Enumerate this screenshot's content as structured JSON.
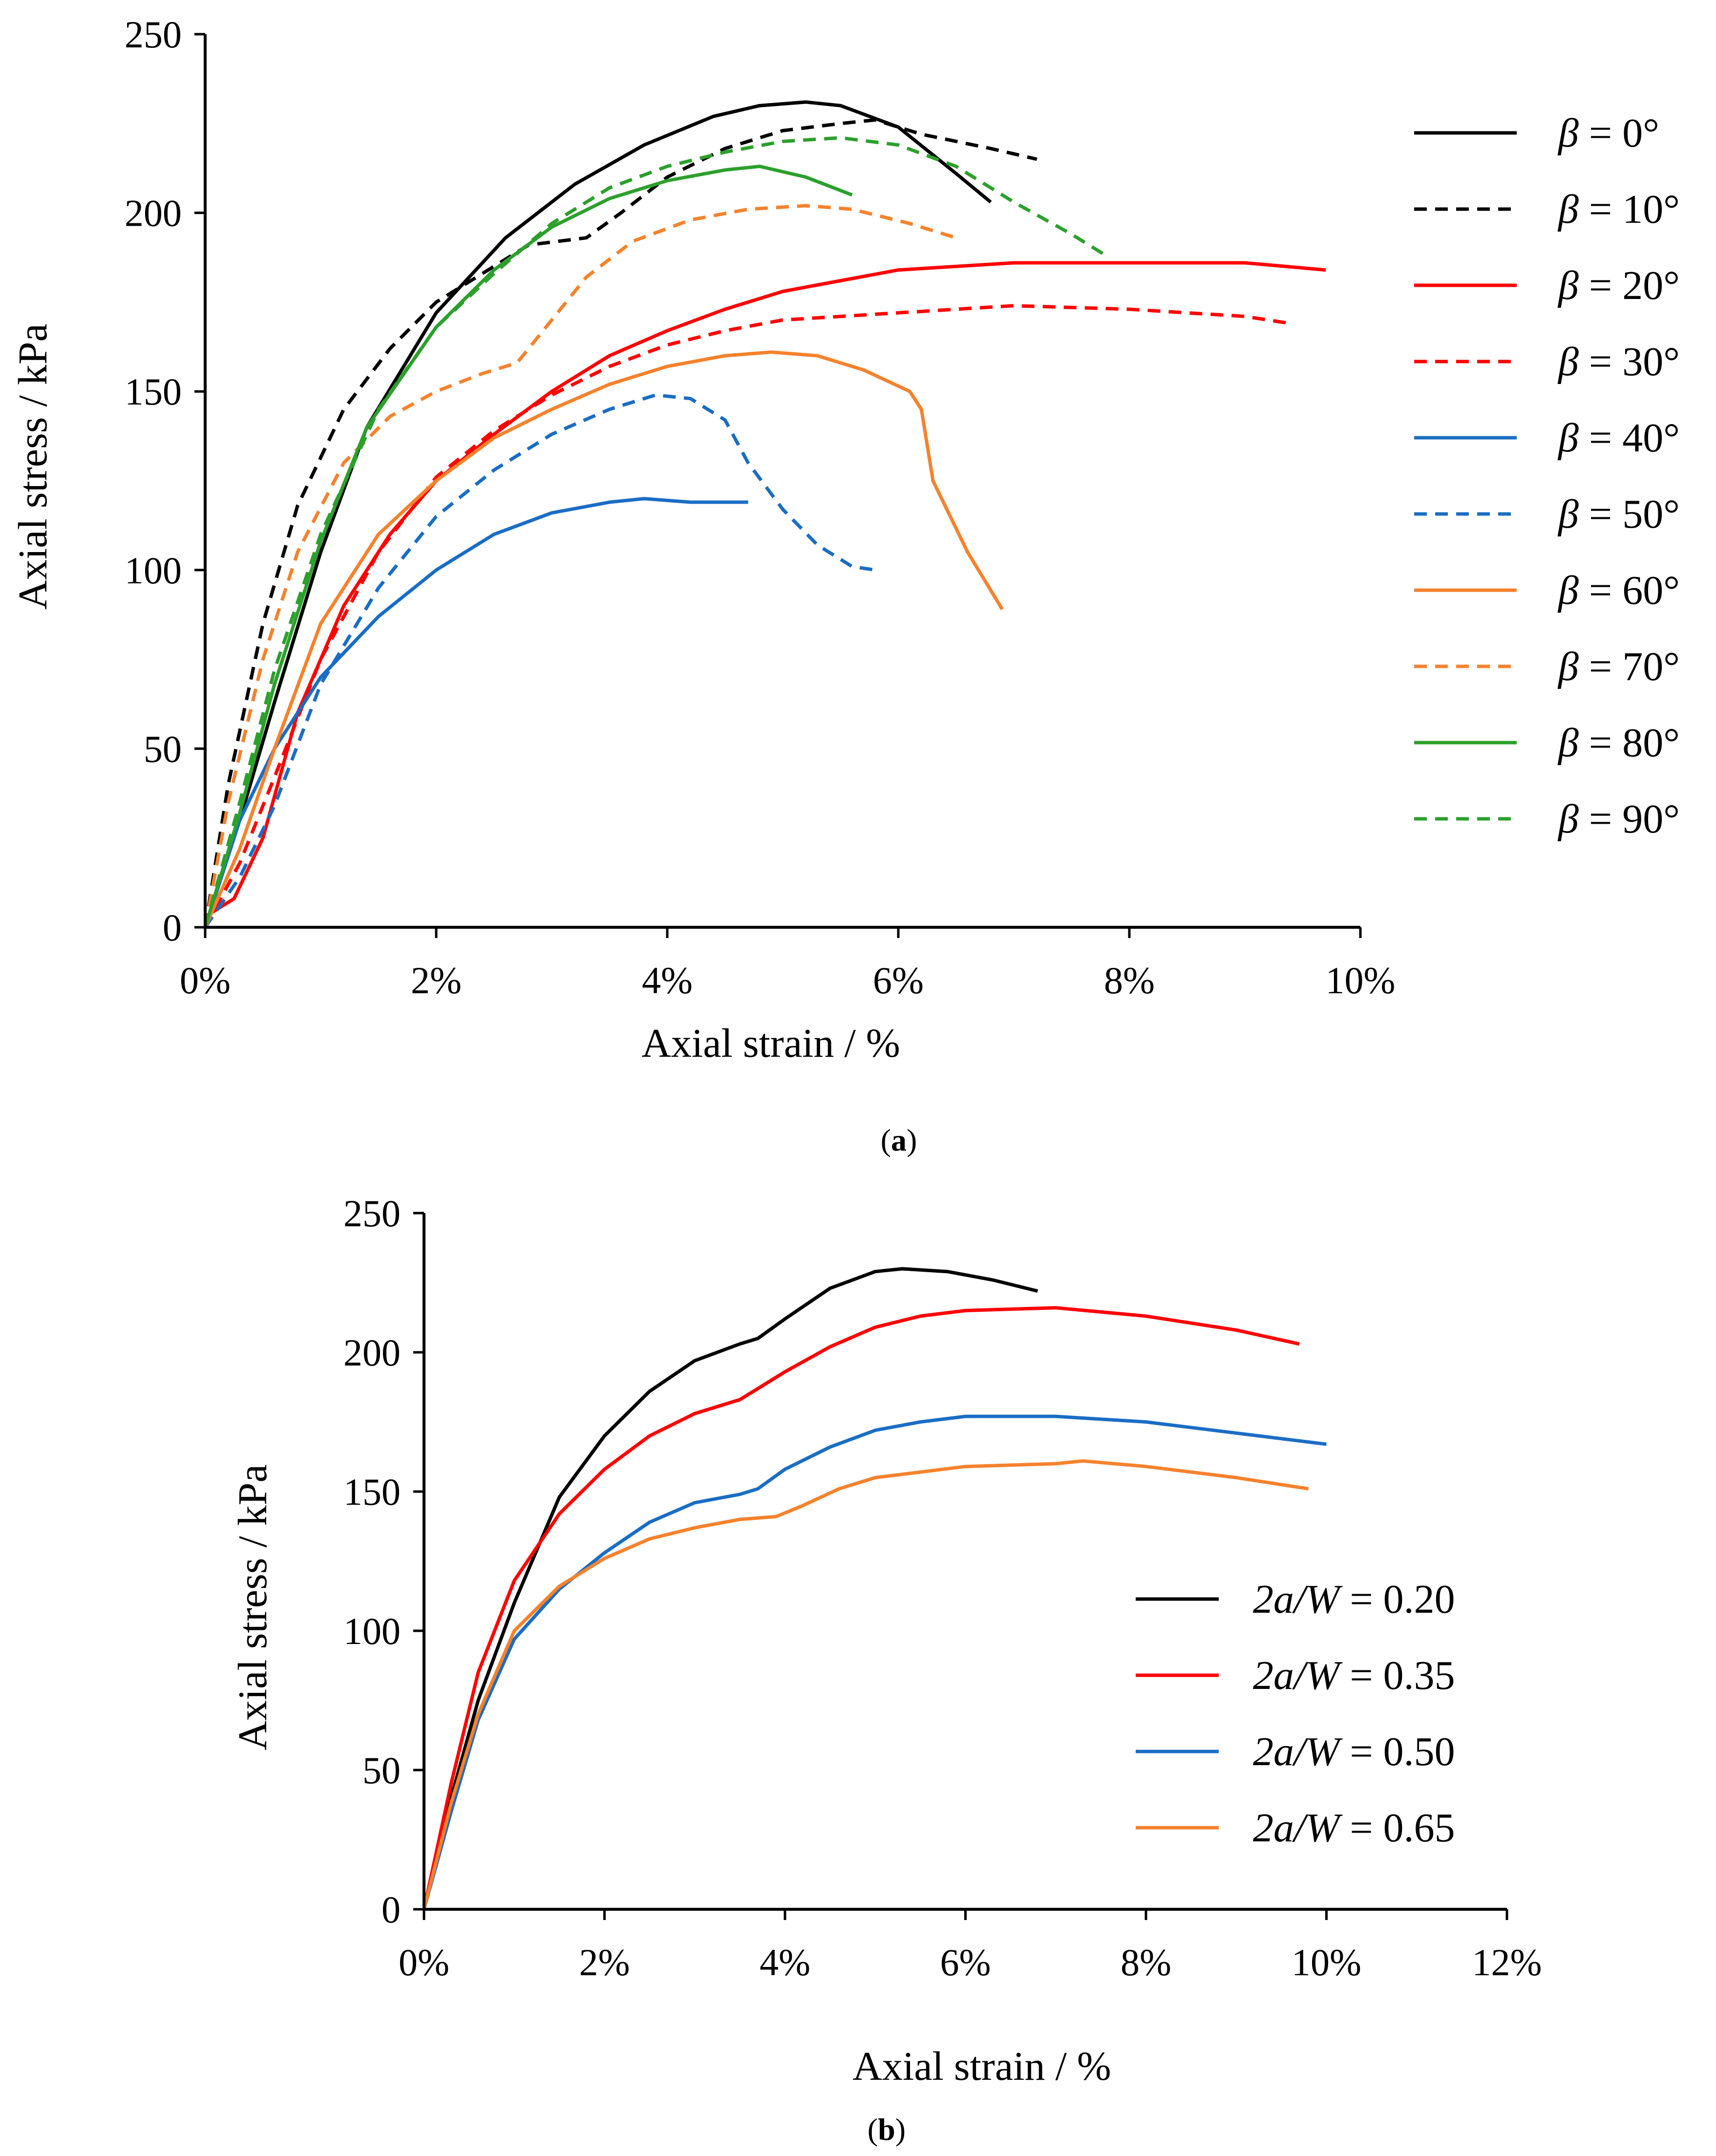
{
  "chart_data": [
    {
      "type": "line",
      "panel_label": {
        "open": "(",
        "letter": "a",
        "close": ")"
      },
      "xlabel": "Axial strain / %",
      "ylabel": "Axial stress / kPa",
      "xlim": [
        0,
        10
      ],
      "ylim": [
        0,
        250
      ],
      "x_ticks": [
        0,
        2,
        4,
        6,
        8,
        10
      ],
      "x_tick_labels": [
        "0%",
        "2%",
        "4%",
        "6%",
        "8%",
        "10%"
      ],
      "y_ticks": [
        0,
        50,
        100,
        150,
        200,
        250
      ],
      "y_tick_labels": [
        "0",
        "50",
        "100",
        "150",
        "200",
        "250"
      ],
      "grid": false,
      "legend_position": "right",
      "series": [
        {
          "name": "β = 0°",
          "legend_var": "β",
          "legend_rest": " = 0°",
          "color": "#000000",
          "dash": "solid",
          "x": [
            0,
            0.3,
            0.6,
            1.0,
            1.4,
            2.0,
            2.6,
            3.2,
            3.8,
            4.4,
            4.8,
            5.2,
            5.5,
            6.0,
            6.5,
            6.8
          ],
          "y": [
            0,
            30,
            63,
            105,
            140,
            172,
            193,
            208,
            219,
            227,
            230,
            231,
            230,
            224,
            211,
            203
          ]
        },
        {
          "name": "β = 10°",
          "legend_var": "β",
          "legend_rest": " = 10°",
          "color": "#000000",
          "dash": "dashed",
          "x": [
            0,
            0.2,
            0.5,
            0.8,
            1.2,
            1.6,
            2.0,
            2.4,
            2.8,
            3.3,
            3.6,
            4.0,
            4.5,
            5.0,
            5.5,
            5.8,
            6.2,
            6.8,
            7.2
          ],
          "y": [
            0,
            40,
            85,
            118,
            145,
            162,
            175,
            183,
            191,
            193,
            200,
            210,
            218,
            223,
            225,
            226,
            222,
            218,
            215
          ]
        },
        {
          "name": "β = 20°",
          "legend_var": "β",
          "legend_rest": " = 20°",
          "color": "#ff0000",
          "dash": "solid",
          "x": [
            0,
            0.25,
            0.5,
            0.8,
            1.2,
            1.6,
            2.0,
            2.5,
            3.0,
            3.5,
            4.0,
            4.5,
            5.0,
            5.5,
            6.0,
            7.0,
            8.0,
            9.0,
            9.7
          ],
          "y": [
            3,
            8,
            25,
            60,
            90,
            110,
            125,
            138,
            150,
            160,
            167,
            173,
            178,
            181,
            184,
            186,
            186,
            186,
            184
          ]
        },
        {
          "name": "β = 30°",
          "legend_var": "β",
          "legend_rest": " = 30°",
          "color": "#ff0000",
          "dash": "dashed",
          "x": [
            0,
            0.3,
            0.6,
            1.0,
            1.5,
            2.0,
            2.5,
            3.0,
            3.5,
            4.0,
            4.5,
            5.0,
            6.0,
            7.0,
            8.0,
            9.0,
            9.4
          ],
          "y": [
            0,
            18,
            42,
            75,
            105,
            126,
            139,
            149,
            157,
            163,
            167,
            170,
            172,
            174,
            173,
            171,
            169
          ]
        },
        {
          "name": "β = 40°",
          "legend_var": "β",
          "legend_rest": " = 40°",
          "color": "#1a6dc4",
          "dash": "solid",
          "x": [
            0,
            0.3,
            0.6,
            1.0,
            1.5,
            2.0,
            2.5,
            3.0,
            3.5,
            3.8,
            4.2,
            4.7
          ],
          "y": [
            0,
            30,
            50,
            70,
            87,
            100,
            110,
            116,
            119,
            120,
            119,
            119
          ]
        },
        {
          "name": "β = 50°",
          "legend_var": "β",
          "legend_rest": " = 50°",
          "color": "#1a6dc4",
          "dash": "dashed",
          "x": [
            0,
            0.3,
            0.6,
            1.0,
            1.5,
            2.0,
            2.5,
            3.0,
            3.5,
            3.9,
            4.2,
            4.5,
            4.7,
            5.0,
            5.3,
            5.6,
            5.8
          ],
          "y": [
            0,
            14,
            34,
            68,
            95,
            115,
            128,
            138,
            145,
            149,
            148,
            142,
            130,
            117,
            107,
            101,
            100
          ]
        },
        {
          "name": "β = 60°",
          "legend_var": "β",
          "legend_rest": " = 60°",
          "color": "#f5822d",
          "dash": "solid",
          "x": [
            0,
            0.3,
            0.6,
            1.0,
            1.5,
            2.0,
            2.5,
            3.0,
            3.5,
            4.0,
            4.5,
            4.9,
            5.3,
            5.7,
            6.1,
            6.2,
            6.3,
            6.6,
            6.9
          ],
          "y": [
            0,
            22,
            50,
            85,
            110,
            125,
            137,
            145,
            152,
            157,
            160,
            161,
            160,
            156,
            150,
            145,
            125,
            105,
            89
          ]
        },
        {
          "name": "β = 70°",
          "legend_var": "β",
          "legend_rest": " = 70°",
          "color": "#f5822d",
          "dash": "dashed",
          "x": [
            0,
            0.2,
            0.5,
            0.8,
            1.2,
            1.6,
            2.0,
            2.4,
            2.7,
            3.0,
            3.3,
            3.7,
            4.2,
            4.7,
            5.2,
            5.6,
            6.1,
            6.5
          ],
          "y": [
            0,
            35,
            75,
            105,
            130,
            143,
            150,
            155,
            158,
            170,
            182,
            192,
            198,
            201,
            202,
            201,
            197,
            193
          ]
        },
        {
          "name": "β = 80°",
          "legend_var": "β",
          "legend_rest": " = 80°",
          "color": "#2ca02c",
          "dash": "solid",
          "x": [
            0,
            0.3,
            0.6,
            1.0,
            1.4,
            2.0,
            2.5,
            3.0,
            3.5,
            4.0,
            4.5,
            4.8,
            5.2,
            5.6
          ],
          "y": [
            0,
            32,
            68,
            108,
            140,
            168,
            184,
            196,
            204,
            209,
            212,
            213,
            210,
            205
          ]
        },
        {
          "name": "β = 90°",
          "legend_var": "β",
          "legend_rest": " = 90°",
          "color": "#2ca02c",
          "dash": "dashed",
          "x": [
            0,
            0.3,
            0.6,
            1.0,
            1.5,
            2.0,
            2.5,
            3.0,
            3.5,
            4.0,
            4.5,
            5.0,
            5.5,
            6.0,
            6.5,
            7.0,
            7.5,
            7.8
          ],
          "y": [
            0,
            35,
            72,
            110,
            145,
            168,
            183,
            197,
            207,
            213,
            217,
            220,
            221,
            219,
            213,
            203,
            194,
            188
          ]
        }
      ]
    },
    {
      "type": "line",
      "panel_label": {
        "open": "(",
        "letter": "b",
        "close": ")"
      },
      "xlabel": "Axial strain / %",
      "ylabel": "Axial stress / kPa",
      "xlim": [
        0,
        12
      ],
      "ylim": [
        0,
        250
      ],
      "x_ticks": [
        0,
        2,
        4,
        6,
        8,
        10,
        12
      ],
      "x_tick_labels": [
        "0%",
        "2%",
        "4%",
        "6%",
        "8%",
        "10%",
        "12%"
      ],
      "y_ticks": [
        0,
        50,
        100,
        150,
        200,
        250
      ],
      "y_tick_labels": [
        "0",
        "50",
        "100",
        "150",
        "200",
        "250"
      ],
      "grid": false,
      "legend_position": "right",
      "series": [
        {
          "name": "2a/W = 0.20",
          "legend_var": "2a/W",
          "legend_rest": " = 0.20",
          "color": "#000000",
          "dash": "solid",
          "x": [
            0,
            0.3,
            0.6,
            1.0,
            1.5,
            2.0,
            2.5,
            3.0,
            3.5,
            3.7,
            4.0,
            4.5,
            5.0,
            5.3,
            5.8,
            6.3,
            6.8
          ],
          "y": [
            0,
            40,
            75,
            110,
            148,
            170,
            186,
            197,
            203,
            205,
            212,
            223,
            229,
            230,
            229,
            226,
            222
          ]
        },
        {
          "name": "2a/W = 0.35",
          "legend_var": "2a/W",
          "legend_rest": " = 0.35",
          "color": "#ff0000",
          "dash": "solid",
          "x": [
            0,
            0.3,
            0.6,
            1.0,
            1.5,
            2.0,
            2.5,
            3.0,
            3.5,
            3.7,
            4.0,
            4.5,
            5.0,
            5.5,
            6.0,
            7.0,
            8.0,
            9.0,
            9.7
          ],
          "y": [
            0,
            45,
            85,
            118,
            142,
            158,
            170,
            178,
            183,
            187,
            193,
            202,
            209,
            213,
            215,
            216,
            213,
            208,
            203
          ]
        },
        {
          "name": "2a/W = 0.50",
          "legend_var": "2a/W",
          "legend_rest": " = 0.50",
          "color": "#1a6dc4",
          "dash": "solid",
          "x": [
            0,
            0.3,
            0.6,
            1.0,
            1.5,
            2.0,
            2.5,
            3.0,
            3.5,
            3.7,
            4.0,
            4.5,
            5.0,
            5.5,
            6.0,
            7.0,
            8.0,
            9.0,
            10.0
          ],
          "y": [
            0,
            35,
            68,
            97,
            115,
            128,
            139,
            146,
            149,
            151,
            158,
            166,
            172,
            175,
            177,
            177,
            175,
            171,
            167
          ]
        },
        {
          "name": "2a/W = 0.65",
          "legend_var": "2a/W",
          "legend_rest": " = 0.65",
          "color": "#f5822d",
          "dash": "solid",
          "x": [
            0,
            0.3,
            0.6,
            1.0,
            1.5,
            2.0,
            2.5,
            3.0,
            3.5,
            3.9,
            4.2,
            4.6,
            5.0,
            5.5,
            6.0,
            7.0,
            7.3,
            8.0,
            9.0,
            9.8
          ],
          "y": [
            0,
            38,
            70,
            100,
            116,
            126,
            133,
            137,
            140,
            141,
            145,
            151,
            155,
            157,
            159,
            160,
            161,
            159,
            155,
            151
          ]
        }
      ]
    }
  ]
}
